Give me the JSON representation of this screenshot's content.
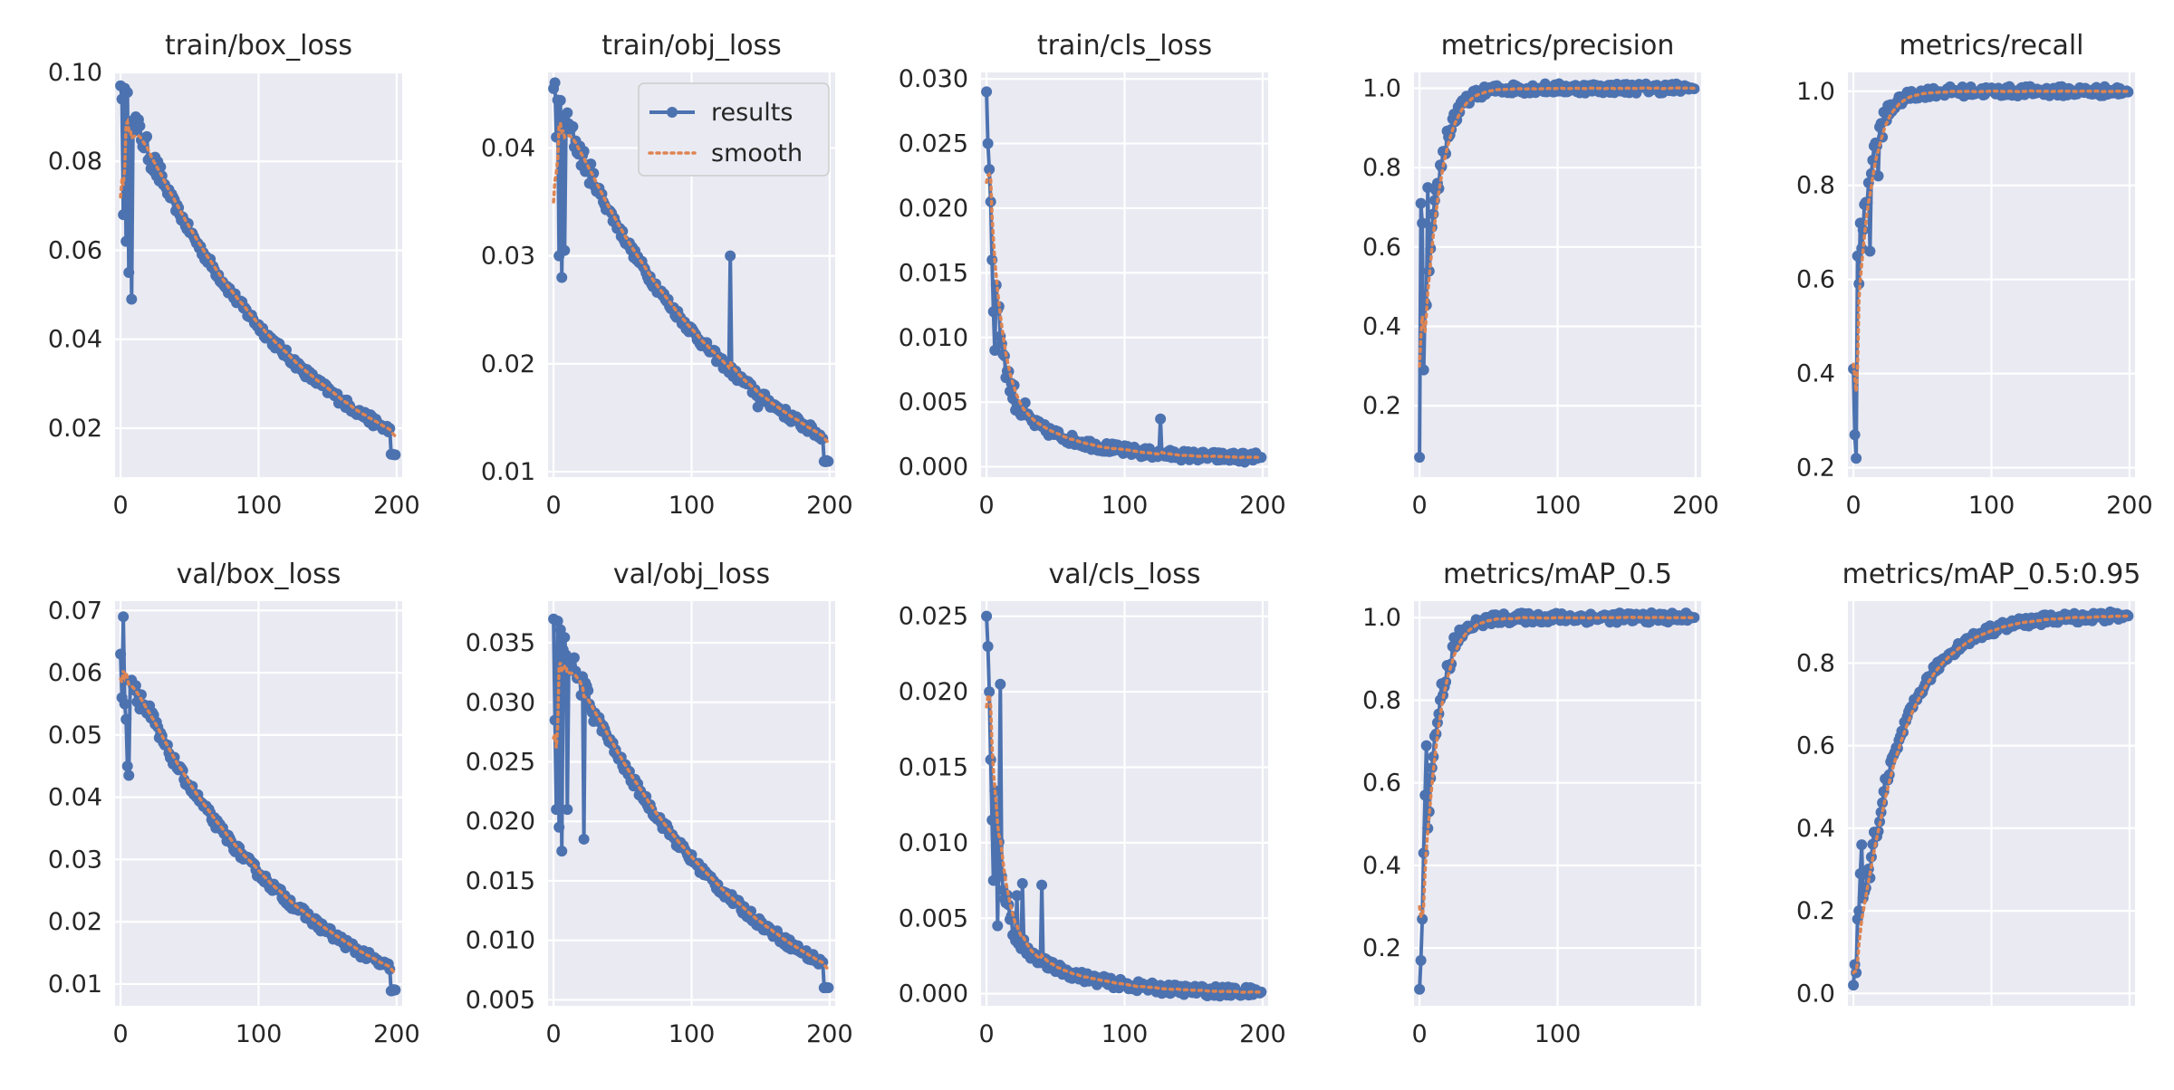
{
  "chart_data": [
    {
      "type": "line",
      "title": "train/box_loss",
      "xlabel": "",
      "ylabel": "",
      "xlim": [
        -4,
        204
      ],
      "ylim": [
        0.009,
        0.1
      ],
      "xticks": [
        0,
        100,
        200
      ],
      "xtick_labels": [
        "0",
        "100",
        "200"
      ],
      "yticks": [
        0.02,
        0.04,
        0.06,
        0.08,
        0.1
      ],
      "ytick_labels": [
        "0.02",
        "0.04",
        "0.06",
        "0.08",
        "0.10"
      ],
      "grid": true,
      "shape": "decay",
      "series": [
        {
          "name": "results",
          "x": [
            0,
            200
          ],
          "y": [
            0.097,
            0.014
          ],
          "points": [
            [
              2,
              0.068
            ],
            [
              4,
              0.062
            ],
            [
              6,
              0.055
            ],
            [
              8,
              0.049
            ]
          ]
        },
        {
          "name": "smooth",
          "x": [
            0,
            200
          ],
          "y": [
            0.072,
            0.014
          ]
        }
      ]
    },
    {
      "type": "line",
      "title": "train/obj_loss",
      "xlabel": "",
      "ylabel": "",
      "xlim": [
        -4,
        204
      ],
      "ylim": [
        0.0095,
        0.047
      ],
      "xticks": [
        0,
        100,
        200
      ],
      "xtick_labels": [
        "0",
        "100",
        "200"
      ],
      "yticks": [
        0.01,
        0.02,
        0.03,
        0.04
      ],
      "ytick_labels": [
        "0.01",
        "0.02",
        "0.03",
        "0.04"
      ],
      "grid": true,
      "shape": "decay",
      "legend": {
        "position": "upper right",
        "entries": [
          "results",
          "smooth"
        ]
      },
      "series": [
        {
          "name": "results",
          "x": [
            0,
            200
          ],
          "y": [
            0.0455,
            0.011
          ],
          "points": [
            [
              2,
              0.041
            ],
            [
              4,
              0.03
            ],
            [
              6,
              0.028
            ],
            [
              8,
              0.0305
            ],
            [
              128,
              0.03
            ],
            [
              148,
              0.016
            ],
            [
              194,
              0.013
            ]
          ]
        },
        {
          "name": "smooth",
          "x": [
            0,
            200
          ],
          "y": [
            0.035,
            0.011
          ]
        }
      ]
    },
    {
      "type": "line",
      "title": "train/cls_loss",
      "xlabel": "",
      "ylabel": "",
      "xlim": [
        -4,
        204
      ],
      "ylim": [
        -0.0008,
        0.0305
      ],
      "xticks": [
        0,
        100,
        200
      ],
      "xtick_labels": [
        "0",
        "100",
        "200"
      ],
      "yticks": [
        0,
        0.005,
        0.01,
        0.015,
        0.02,
        0.025,
        0.03
      ],
      "ytick_labels": [
        "0.000",
        "0.005",
        "0.010",
        "0.015",
        "0.020",
        "0.025",
        "0.030"
      ],
      "grid": true,
      "shape": "fast-decay",
      "series": [
        {
          "name": "results",
          "x": [
            0,
            200
          ],
          "y": [
            0.029,
            0.0007
          ],
          "points": [
            [
              1,
              0.025
            ],
            [
              2,
              0.023
            ],
            [
              3,
              0.0205
            ],
            [
              4,
              0.016
            ],
            [
              5,
              0.012
            ],
            [
              6,
              0.009
            ],
            [
              126,
              0.0037
            ]
          ]
        },
        {
          "name": "smooth",
          "x": [
            0,
            200
          ],
          "y": [
            0.022,
            0.0007
          ]
        }
      ]
    },
    {
      "type": "line",
      "title": "metrics/precision",
      "xlabel": "",
      "ylabel": "",
      "xlim": [
        -4,
        204
      ],
      "ylim": [
        0.02,
        1.04
      ],
      "xticks": [
        0,
        100,
        200
      ],
      "xtick_labels": [
        "0",
        "100",
        "200"
      ],
      "yticks": [
        0.2,
        0.4,
        0.6,
        0.8,
        1.0
      ],
      "ytick_labels": [
        "0.2",
        "0.4",
        "0.6",
        "0.8",
        "1.0"
      ],
      "grid": true,
      "shape": "rise",
      "series": [
        {
          "name": "results",
          "x": [
            0,
            200
          ],
          "y": [
            0.07,
            1.0
          ],
          "points": [
            [
              1,
              0.71
            ],
            [
              2,
              0.66
            ],
            [
              3,
              0.29
            ],
            [
              4,
              0.46
            ],
            [
              6,
              0.75
            ]
          ]
        },
        {
          "name": "smooth",
          "x": [
            0,
            200
          ],
          "y": [
            0.3,
            1.0
          ]
        }
      ]
    },
    {
      "type": "line",
      "title": "metrics/recall",
      "xlabel": "",
      "ylabel": "",
      "xlim": [
        -4,
        204
      ],
      "ylim": [
        0.18,
        1.04
      ],
      "xticks": [
        0,
        100,
        200
      ],
      "xtick_labels": [
        "0",
        "100",
        "200"
      ],
      "yticks": [
        0.2,
        0.4,
        0.6,
        0.8,
        1.0
      ],
      "ytick_labels": [
        "0.2",
        "0.4",
        "0.6",
        "0.8",
        "1.0"
      ],
      "grid": true,
      "shape": "rise",
      "series": [
        {
          "name": "results",
          "x": [
            0,
            200
          ],
          "y": [
            0.41,
            1.0
          ],
          "points": [
            [
              1,
              0.27
            ],
            [
              2,
              0.22
            ],
            [
              3,
              0.65
            ],
            [
              5,
              0.72
            ],
            [
              12,
              0.66
            ],
            [
              18,
              0.82
            ]
          ]
        },
        {
          "name": "smooth",
          "x": [
            0,
            200
          ],
          "y": [
            0.42,
            1.0
          ]
        }
      ]
    },
    {
      "type": "line",
      "title": "val/box_loss",
      "xlabel": "",
      "ylabel": "",
      "xlim": [
        -4,
        204
      ],
      "ylim": [
        0.0065,
        0.0715
      ],
      "xticks": [
        0,
        100,
        200
      ],
      "xtick_labels": [
        "0",
        "100",
        "200"
      ],
      "yticks": [
        0.01,
        0.02,
        0.03,
        0.04,
        0.05,
        0.06,
        0.07
      ],
      "ytick_labels": [
        "0.01",
        "0.02",
        "0.03",
        "0.04",
        "0.05",
        "0.06",
        "0.07"
      ],
      "grid": true,
      "shape": "decay",
      "series": [
        {
          "name": "results",
          "x": [
            0,
            200
          ],
          "y": [
            0.063,
            0.009
          ],
          "points": [
            [
              1,
              0.056
            ],
            [
              2,
              0.069
            ],
            [
              3,
              0.055
            ],
            [
              4,
              0.0525
            ],
            [
              5,
              0.045
            ],
            [
              6,
              0.0435
            ]
          ]
        },
        {
          "name": "smooth",
          "x": [
            0,
            200
          ],
          "y": [
            0.059,
            0.009
          ]
        }
      ]
    },
    {
      "type": "line",
      "title": "val/obj_loss",
      "xlabel": "",
      "ylabel": "",
      "xlim": [
        -4,
        204
      ],
      "ylim": [
        0.0045,
        0.0385
      ],
      "xticks": [
        0,
        100,
        200
      ],
      "xtick_labels": [
        "0",
        "100",
        "200"
      ],
      "yticks": [
        0.005,
        0.01,
        0.015,
        0.02,
        0.025,
        0.03,
        0.035
      ],
      "ytick_labels": [
        "0.005",
        "0.010",
        "0.015",
        "0.020",
        "0.025",
        "0.030",
        "0.035"
      ],
      "grid": true,
      "shape": "decay",
      "series": [
        {
          "name": "results",
          "x": [
            0,
            200
          ],
          "y": [
            0.037,
            0.006
          ],
          "points": [
            [
              1,
              0.0285
            ],
            [
              2,
              0.021
            ],
            [
              4,
              0.0195
            ],
            [
              6,
              0.0175
            ],
            [
              10,
              0.021
            ],
            [
              22,
              0.0185
            ]
          ]
        },
        {
          "name": "smooth",
          "x": [
            0,
            200
          ],
          "y": [
            0.027,
            0.006
          ]
        }
      ]
    },
    {
      "type": "line",
      "title": "val/cls_loss",
      "xlabel": "",
      "ylabel": "",
      "xlim": [
        -4,
        204
      ],
      "ylim": [
        -0.0008,
        0.026
      ],
      "xticks": [
        0,
        100,
        200
      ],
      "xtick_labels": [
        "0",
        "100",
        "200"
      ],
      "yticks": [
        0,
        0.005,
        0.01,
        0.015,
        0.02,
        0.025
      ],
      "ytick_labels": [
        "0.000",
        "0.005",
        "0.010",
        "0.015",
        "0.020",
        "0.025"
      ],
      "grid": true,
      "shape": "fast-decay",
      "series": [
        {
          "name": "results",
          "x": [
            0,
            200
          ],
          "y": [
            0.025,
            0.0001
          ],
          "points": [
            [
              1,
              0.023
            ],
            [
              2,
              0.02
            ],
            [
              3,
              0.0155
            ],
            [
              4,
              0.0115
            ],
            [
              5,
              0.0075
            ],
            [
              8,
              0.0045
            ],
            [
              10,
              0.0205
            ],
            [
              22,
              0.0065
            ],
            [
              26,
              0.0073
            ],
            [
              40,
              0.0072
            ]
          ]
        },
        {
          "name": "smooth",
          "x": [
            0,
            200
          ],
          "y": [
            0.019,
            0.0001
          ]
        }
      ]
    },
    {
      "type": "line",
      "title": "metrics/mAP_0.5",
      "xlabel": "",
      "ylabel": "",
      "xlim": [
        -4,
        204
      ],
      "ylim": [
        0.06,
        1.04
      ],
      "xticks": [
        0,
        100
      ],
      "xtick_labels": [
        "0",
        "100"
      ],
      "yticks": [
        0.2,
        0.4,
        0.6,
        0.8,
        1.0
      ],
      "ytick_labels": [
        "0.2",
        "0.4",
        "0.6",
        "0.8",
        "1.0"
      ],
      "grid": true,
      "shape": "rise",
      "series": [
        {
          "name": "results",
          "x": [
            0,
            200
          ],
          "y": [
            0.1,
            1.0
          ],
          "points": [
            [
              1,
              0.17
            ],
            [
              2,
              0.27
            ],
            [
              3,
              0.43
            ],
            [
              4,
              0.57
            ],
            [
              5,
              0.69
            ]
          ]
        },
        {
          "name": "smooth",
          "x": [
            0,
            200
          ],
          "y": [
            0.3,
            1.0
          ]
        }
      ]
    },
    {
      "type": "line",
      "title": "metrics/mAP_0.5:0.95",
      "xlabel": "",
      "ylabel": "",
      "xlim": [
        -4,
        204
      ],
      "ylim": [
        -0.03,
        0.95
      ],
      "xticks": [],
      "xtick_labels": [],
      "yticks": [
        0,
        0.2,
        0.4,
        0.6,
        0.8
      ],
      "ytick_labels": [
        "0.0",
        "0.2",
        "0.4",
        "0.6",
        "0.8"
      ],
      "grid": true,
      "shape": "log-rise",
      "series": [
        {
          "name": "results",
          "x": [
            0,
            200
          ],
          "y": [
            0.02,
            0.915
          ],
          "points": [
            [
              1,
              0.07
            ],
            [
              2,
              0.05
            ],
            [
              3,
              0.18
            ],
            [
              4,
              0.2
            ],
            [
              5,
              0.29
            ],
            [
              6,
              0.36
            ]
          ]
        },
        {
          "name": "smooth",
          "x": [
            0,
            200
          ],
          "y": [
            0.05,
            0.915
          ]
        }
      ]
    }
  ],
  "colors": {
    "results": "#4c72b0",
    "smooth": "#dd8452",
    "background": "#eaeaf2",
    "grid": "#ffffff",
    "text": "#262626"
  }
}
